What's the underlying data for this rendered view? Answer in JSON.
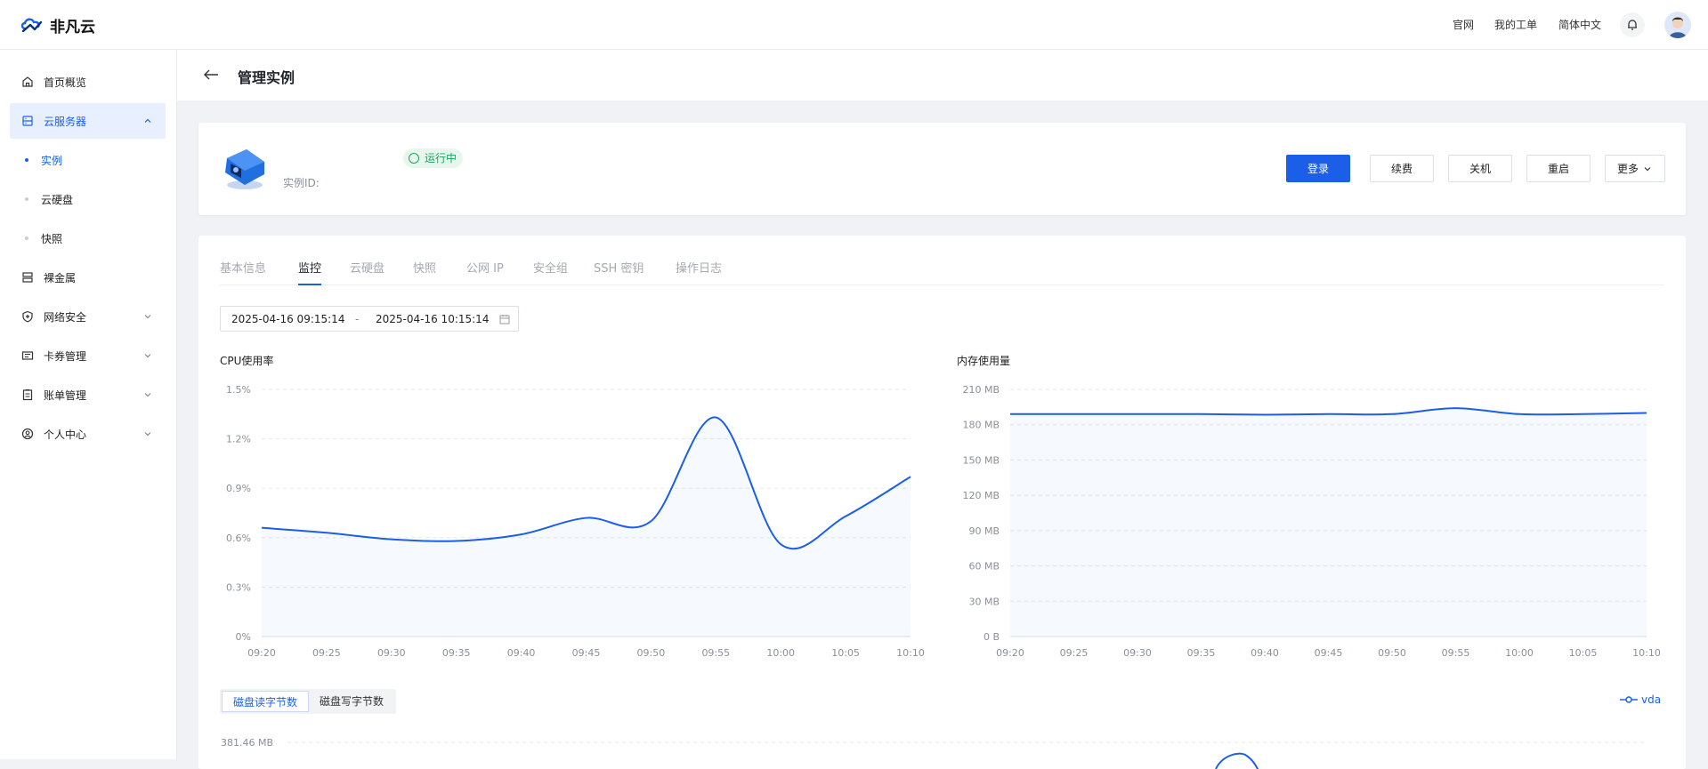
{
  "brand": {
    "name": "非凡云"
  },
  "header": {
    "links": [
      "官网",
      "我的工单",
      "简体中文"
    ]
  },
  "sidebar": {
    "items": [
      {
        "label": "首页概览"
      },
      {
        "label": "云服务器"
      },
      {
        "label": "裸金属"
      },
      {
        "label": "网络安全"
      },
      {
        "label": "卡券管理"
      },
      {
        "label": "账单管理"
      },
      {
        "label": "个人中心"
      }
    ],
    "subitems": [
      {
        "label": "实例"
      },
      {
        "label": "云硬盘"
      },
      {
        "label": "快照"
      }
    ]
  },
  "page": {
    "title": "管理实例"
  },
  "instance": {
    "id_label": "实例ID:",
    "status": "运行中"
  },
  "actions": {
    "login": "登录",
    "renew": "续费",
    "shutdown": "关机",
    "restart": "重启",
    "more": "更多"
  },
  "tabs": [
    "基本信息",
    "监控",
    "云硬盘",
    "快照",
    "公网 IP",
    "安全组",
    "SSH 密钥",
    "操作日志"
  ],
  "daterange": {
    "start": "2025-04-16 09:15:14",
    "separator": "-",
    "end": "2025-04-16 10:15:14"
  },
  "disk": {
    "tabs": [
      "磁盘读字节数",
      "磁盘写字节数"
    ],
    "legend": "vda"
  },
  "colors": {
    "accent": "#1b5fe8",
    "success": "#1aa55a"
  },
  "chart_data": [
    {
      "type": "line",
      "title": "CPU使用率",
      "x": [
        "09:20",
        "09:25",
        "09:30",
        "09:35",
        "09:40",
        "09:45",
        "09:50",
        "09:55",
        "10:00",
        "10:05",
        "10:10"
      ],
      "series": [
        {
          "values": [
            0.66,
            0.63,
            0.59,
            0.58,
            0.62,
            0.72,
            0.7,
            1.33,
            0.56,
            0.73,
            0.97
          ]
        }
      ],
      "yticks": [
        "0%",
        "0.3%",
        "0.6%",
        "0.9%",
        "1.2%",
        "1.5%"
      ],
      "ylim": [
        0,
        1.5
      ],
      "grid": true
    },
    {
      "type": "line",
      "title": "内存使用量",
      "x": [
        "09:20",
        "09:25",
        "09:30",
        "09:35",
        "09:40",
        "09:45",
        "09:50",
        "09:55",
        "10:00",
        "10:05",
        "10:10"
      ],
      "series": [
        {
          "values": [
            189,
            189,
            189,
            189,
            188.5,
            189,
            189,
            194,
            189,
            189,
            190
          ]
        }
      ],
      "yticks": [
        "0 B",
        "30 MB",
        "60 MB",
        "90 MB",
        "120 MB",
        "150 MB",
        "180 MB",
        "210 MB"
      ],
      "ylim": [
        0,
        210
      ],
      "grid": true
    },
    {
      "type": "line",
      "title": "",
      "yticks": [
        "381.46 MB"
      ],
      "series": [
        {
          "name": "vda"
        }
      ],
      "grid": true
    }
  ]
}
